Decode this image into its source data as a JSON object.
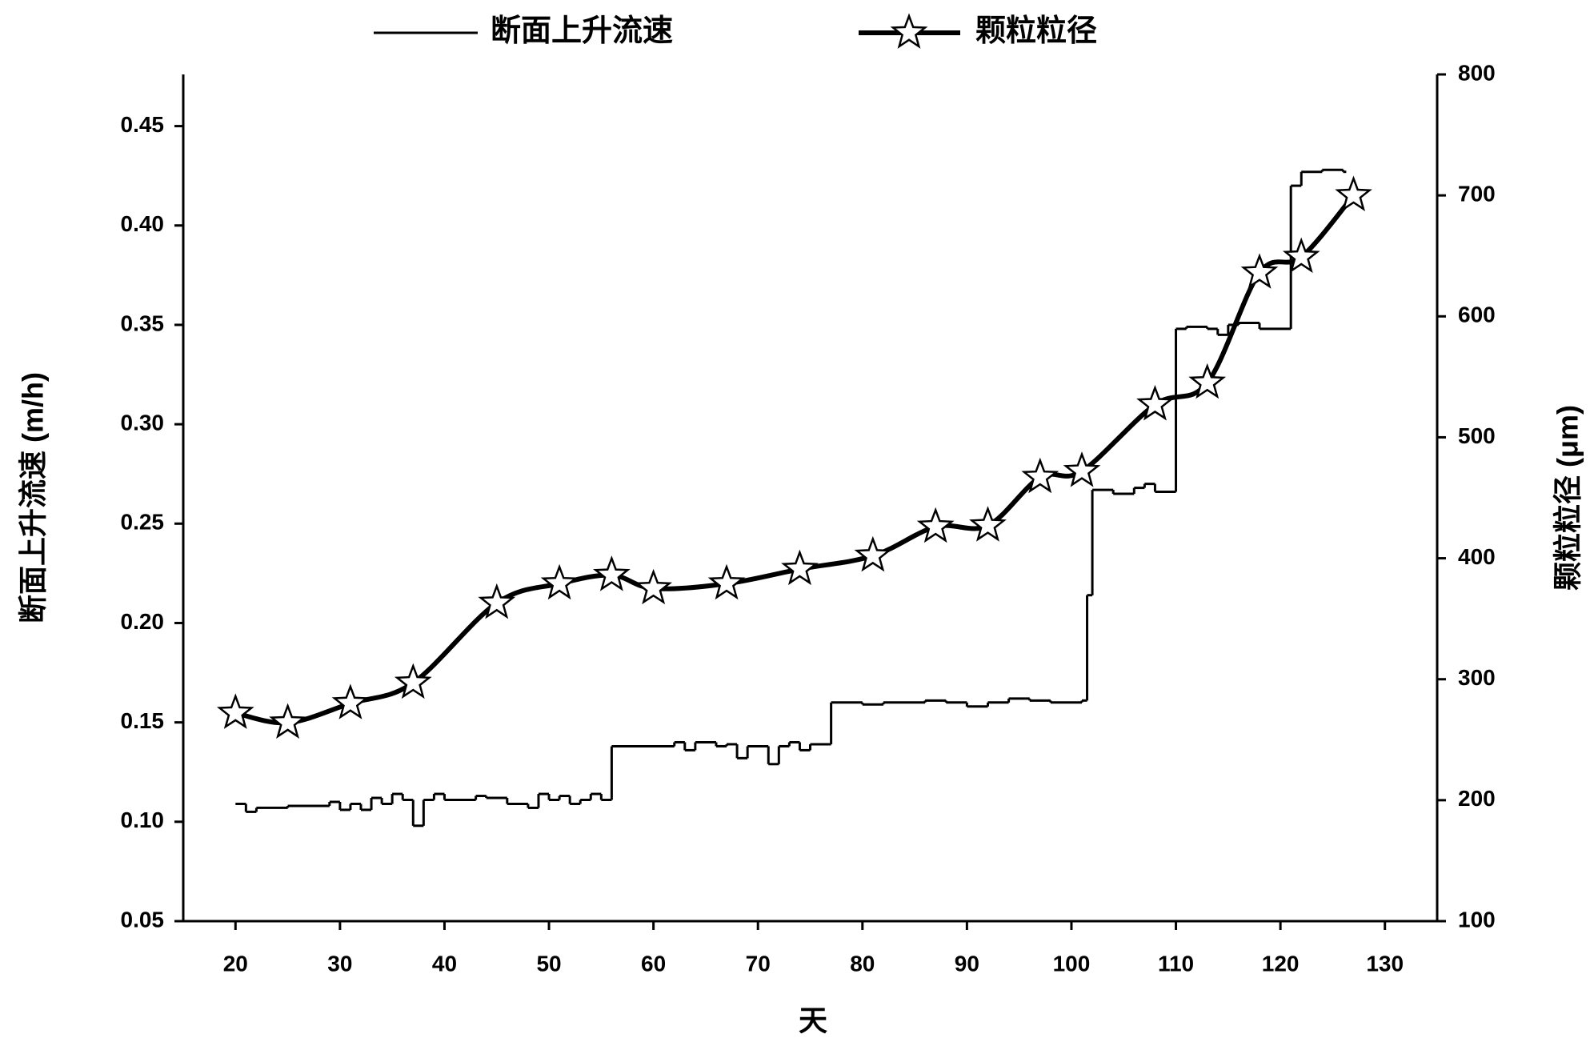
{
  "chart_data": {
    "type": "line",
    "x_label": "天",
    "y_label": "断面上升流速 (m/h)",
    "y2_label": "颗粒粒径 (μm)",
    "xlim": [
      15,
      135
    ],
    "xticks": [
      20,
      30,
      40,
      50,
      60,
      70,
      80,
      90,
      100,
      110,
      120,
      130
    ],
    "ylim": [
      0.05,
      0.476
    ],
    "yticks": [
      0.05,
      {
        "value": 0.1,
        "label": "0.10"
      },
      0.15,
      {
        "value": 0.2,
        "label": "0.20"
      },
      0.25,
      {
        "value": 0.3,
        "label": "0.30"
      },
      0.35,
      {
        "value": 0.4,
        "label": "0.40"
      },
      0.45
    ],
    "y2lim": [
      100,
      800
    ],
    "y2ticks": [
      100,
      200,
      300,
      400,
      500,
      600,
      700,
      800
    ],
    "legend": "top",
    "series": [
      {
        "name": "断面上升流速",
        "color": "#000000",
        "step": "post",
        "x": [
          20,
          21,
          22,
          25,
          29,
          30,
          31,
          32,
          33,
          34,
          35,
          36,
          37,
          38,
          39,
          40,
          43,
          44,
          46,
          48,
          49,
          50,
          51,
          52,
          53,
          54,
          55,
          56,
          62,
          63,
          64,
          66,
          67,
          68,
          69,
          71,
          72,
          73,
          74,
          75,
          77,
          80,
          82,
          86,
          88,
          90,
          92,
          94,
          96,
          98,
          101,
          101.5,
          102,
          104,
          106,
          107,
          108,
          110,
          111,
          113,
          114,
          115,
          116,
          118,
          121,
          122,
          124,
          126
        ],
        "values": [
          0.109,
          0.105,
          0.107,
          0.108,
          0.11,
          0.106,
          0.109,
          0.106,
          0.112,
          0.109,
          0.114,
          0.111,
          0.098,
          0.111,
          0.114,
          0.111,
          0.113,
          0.112,
          0.109,
          0.107,
          0.114,
          0.111,
          0.113,
          0.109,
          0.111,
          0.114,
          0.111,
          0.138,
          0.14,
          0.136,
          0.14,
          0.138,
          0.139,
          0.132,
          0.138,
          0.129,
          0.138,
          0.14,
          0.136,
          0.139,
          0.16,
          0.159,
          0.16,
          0.161,
          0.16,
          0.158,
          0.16,
          0.162,
          0.161,
          0.16,
          0.161,
          0.214,
          0.267,
          0.265,
          0.268,
          0.27,
          0.266,
          0.348,
          0.349,
          0.348,
          0.345,
          0.35,
          0.351,
          0.348,
          0.42,
          0.427,
          0.428,
          0.427
        ]
      },
      {
        "name": "颗粒粒径",
        "color": "#000000",
        "axis": "y2",
        "marker": "star",
        "x": [
          20,
          25,
          31,
          37,
          45,
          51,
          56,
          60,
          67,
          74,
          81,
          87,
          92,
          97,
          101,
          108,
          113,
          118,
          122,
          127
        ],
        "values": [
          272,
          264,
          280,
          297,
          363,
          379,
          386,
          375,
          379,
          391,
          402,
          426,
          427,
          467,
          472,
          527,
          545,
          636,
          649,
          700
        ]
      }
    ]
  }
}
